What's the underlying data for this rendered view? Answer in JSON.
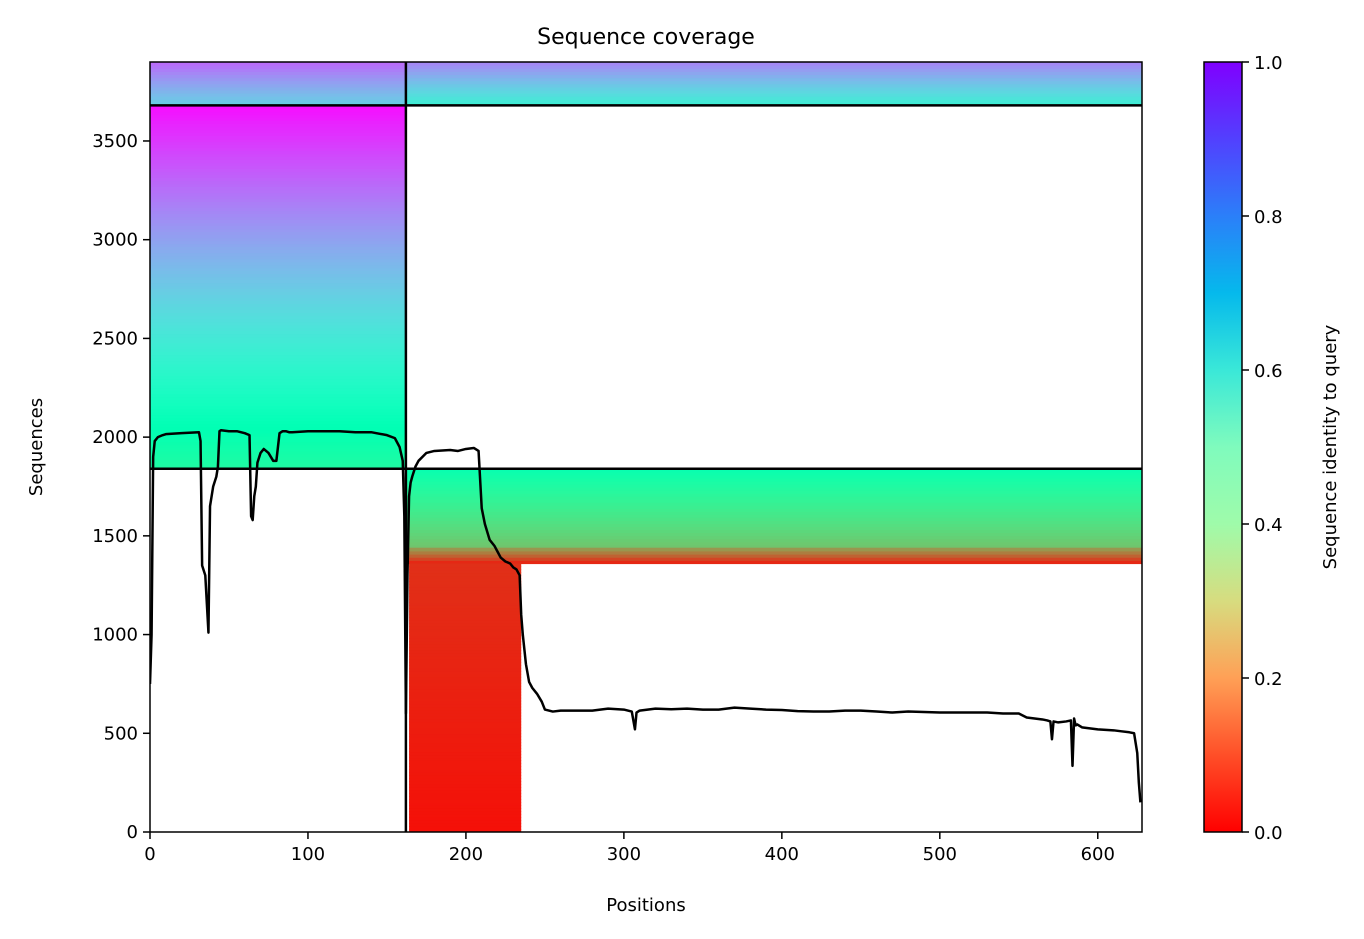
{
  "chart_data": {
    "type": "heatmap",
    "title": "Sequence coverage",
    "xlabel": "Positions",
    "ylabel": "Sequences",
    "colorbar_label": "Sequence identity to query",
    "colormap": "rainbow",
    "xlim": [
      0,
      628
    ],
    "ylim": [
      0,
      3900
    ],
    "xticks": [
      0,
      100,
      200,
      300,
      400,
      500,
      600
    ],
    "xtick_labels": [
      "0",
      "100",
      "200",
      "300",
      "400",
      "500",
      "600"
    ],
    "yticks": [
      0,
      500,
      1000,
      1500,
      2000,
      2500,
      3000,
      3500
    ],
    "ytick_labels": [
      "0",
      "500",
      "1000",
      "1500",
      "2000",
      "2500",
      "3000",
      "3500"
    ],
    "colorbar_ticks": [
      0.0,
      0.2,
      0.4,
      0.6,
      0.8,
      1.0
    ],
    "colorbar_tick_labels": [
      "0.0",
      "0.2",
      "0.4",
      "0.6",
      "0.8",
      "1.0"
    ],
    "domain_boundaries": {
      "x": [
        162
      ],
      "y": [
        1840,
        3680
      ]
    },
    "coverage_blocks": [
      {
        "x": [
          0,
          162
        ],
        "y": [
          3680,
          3900
        ],
        "identity": [
          0.7,
          0.86
        ]
      },
      {
        "x": [
          162,
          628
        ],
        "y": [
          3680,
          3900
        ],
        "identity": [
          0.62,
          0.82
        ]
      },
      {
        "x": [
          0,
          162
        ],
        "y": [
          1840,
          3680
        ],
        "identity": [
          0.44,
          0.98
        ]
      },
      {
        "x": [
          162,
          628
        ],
        "y": [
          1440,
          1840
        ],
        "identity": [
          0.28,
          0.48
        ]
      },
      {
        "x": [
          162,
          628
        ],
        "y": [
          1360,
          1440
        ],
        "identity": [
          0.05,
          0.2
        ]
      },
      {
        "x": [
          164,
          235
        ],
        "y": [
          0,
          1360
        ],
        "identity": [
          0.02,
          0.06
        ]
      }
    ],
    "coverage_line": {
      "name": "coverage",
      "color": "#000000",
      "x": [
        0,
        1,
        2,
        3,
        5,
        8,
        10,
        20,
        31,
        32,
        33,
        35,
        37,
        38,
        40,
        42,
        43,
        44,
        45,
        50,
        55,
        60,
        63,
        64,
        65,
        66,
        67,
        68,
        70,
        72,
        75,
        78,
        80,
        82,
        84,
        86,
        88,
        90,
        100,
        110,
        120,
        130,
        140,
        150,
        155,
        158,
        160,
        161,
        162,
        163,
        164,
        165,
        166,
        168,
        170,
        175,
        180,
        190,
        195,
        200,
        205,
        208,
        210,
        212,
        215,
        218,
        220,
        222,
        225,
        228,
        230,
        232,
        234,
        235,
        236,
        238,
        240,
        242,
        245,
        248,
        250,
        255,
        260,
        270,
        280,
        290,
        300,
        305,
        307,
        308,
        310,
        320,
        330,
        340,
        350,
        360,
        370,
        380,
        390,
        400,
        410,
        420,
        430,
        440,
        450,
        460,
        470,
        480,
        490,
        500,
        510,
        520,
        530,
        540,
        550,
        555,
        560,
        565,
        568,
        570,
        571,
        572,
        575,
        580,
        583,
        584,
        585,
        586,
        587,
        590,
        600,
        610,
        615,
        620,
        623,
        625,
        626,
        627
      ],
      "y": [
        750,
        1000,
        1900,
        1980,
        2000,
        2010,
        2015,
        2020,
        2025,
        1980,
        1350,
        1300,
        1010,
        1650,
        1750,
        1800,
        1850,
        2030,
        2035,
        2030,
        2030,
        2020,
        2010,
        1600,
        1580,
        1700,
        1750,
        1870,
        1920,
        1940,
        1920,
        1880,
        1880,
        2020,
        2030,
        2030,
        2025,
        2025,
        2030,
        2030,
        2030,
        2025,
        2025,
        2010,
        1995,
        1950,
        1880,
        1600,
        600,
        1300,
        1700,
        1770,
        1800,
        1850,
        1880,
        1920,
        1930,
        1935,
        1930,
        1940,
        1945,
        1930,
        1640,
        1560,
        1480,
        1450,
        1420,
        1390,
        1370,
        1360,
        1340,
        1330,
        1300,
        1100,
        1000,
        850,
        760,
        730,
        700,
        660,
        620,
        610,
        615,
        615,
        615,
        625,
        620,
        610,
        520,
        605,
        615,
        625,
        622,
        625,
        620,
        620,
        630,
        625,
        620,
        618,
        612,
        610,
        610,
        615,
        615,
        610,
        605,
        610,
        608,
        605,
        605,
        605,
        605,
        600,
        600,
        580,
        575,
        570,
        565,
        560,
        470,
        560,
        555,
        560,
        565,
        335,
        575,
        540,
        545,
        530,
        520,
        515,
        510,
        505,
        500,
        400,
        250,
        150
      ]
    }
  }
}
